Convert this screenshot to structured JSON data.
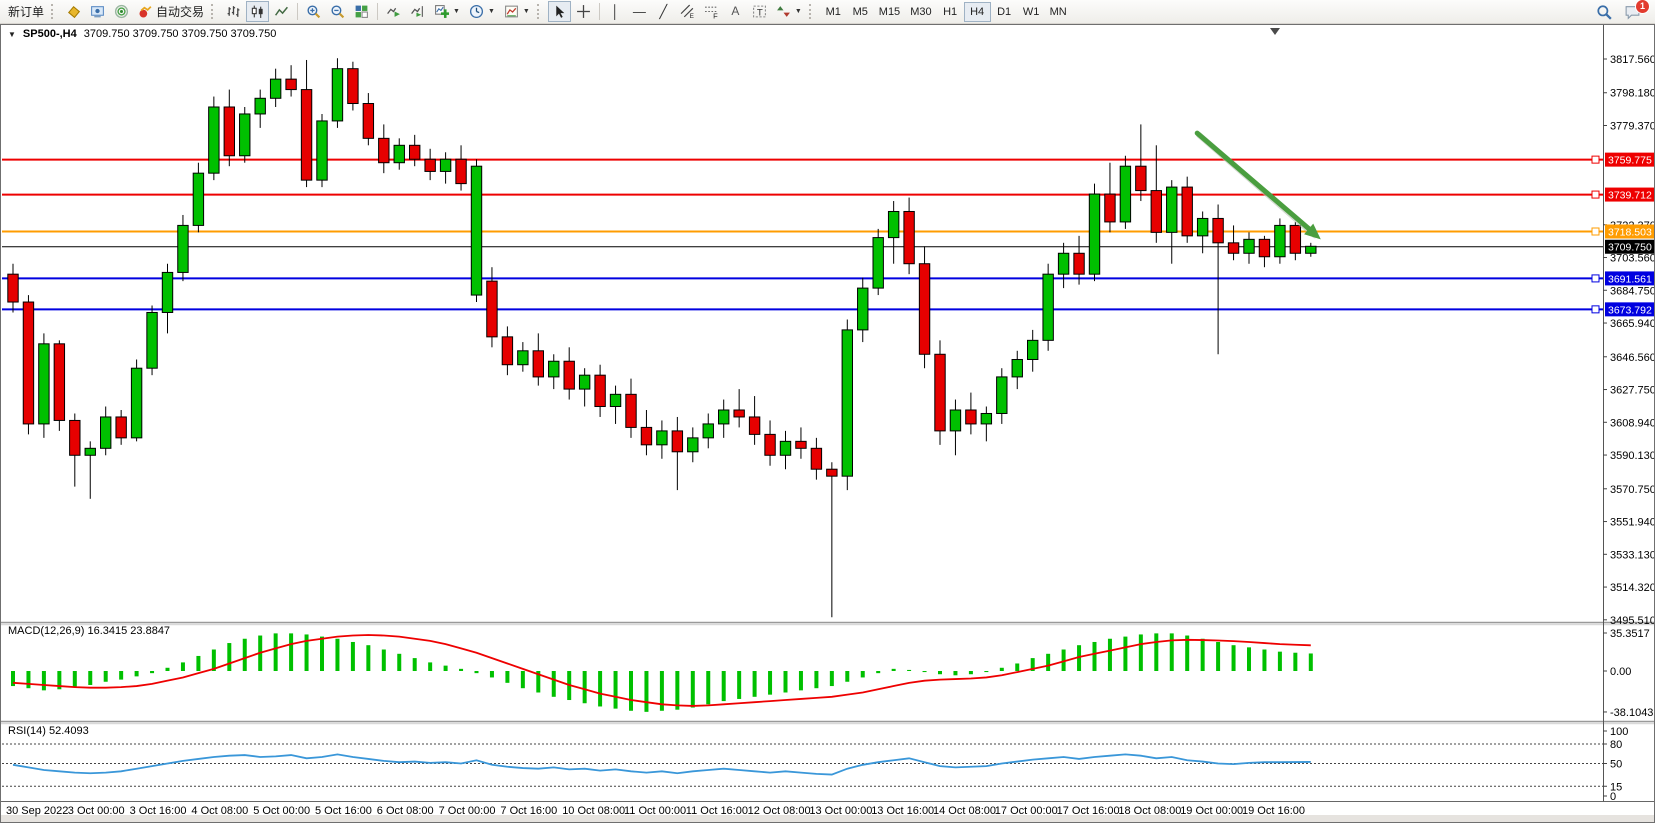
{
  "toolbar": {
    "new_order_label": "新订单",
    "auto_trading_label": "自动交易",
    "timeframes": [
      "M1",
      "M5",
      "M15",
      "M30",
      "H1",
      "H4",
      "D1",
      "W1",
      "MN"
    ],
    "active_timeframe": "H4",
    "notification_badge": "1"
  },
  "chart": {
    "symbol_period": "SP500-,H4",
    "quote_line": "3709.750 3709.750 3709.750 3709.750"
  },
  "macd": {
    "label": "MACD(12,26,9) 16.3415 23.8847",
    "axis_max": "35.3517",
    "axis_zero": "0.00",
    "axis_min": "-38.1043"
  },
  "rsi": {
    "label": "RSI(14) 52.4093",
    "axis_labels": [
      "100",
      "80",
      "50",
      "15",
      "0"
    ]
  },
  "colors": {
    "bull": "#00c000",
    "bear": "#e60000",
    "wick": "#000000",
    "macd_hist": "#00c000",
    "macd_signal": "#ee0000",
    "rsi_line": "#3a97d9",
    "resistance": "#ee0000",
    "pivot": "#ff9c00",
    "support": "#0000e0",
    "current_price": "#000000",
    "arrow": "#4a9e3f"
  },
  "chart_data": {
    "type": "candlestick",
    "symbol": "SP500-",
    "timeframe": "H4",
    "title": "SP500-,H4 3709.750 3709.750 3709.750 3709.750",
    "price_axis_ticks": [
      "3817.560",
      "3798.180",
      "3779.370",
      "3722.370",
      "3703.560",
      "3684.750",
      "3665.940",
      "3646.560",
      "3627.750",
      "3608.940",
      "3590.130",
      "3570.750",
      "3551.940",
      "3533.130",
      "3514.320",
      "3495.510"
    ],
    "x_labels": [
      "30 Sep 2022",
      "3 Oct 00:00",
      "3 Oct 16:00",
      "4 Oct 08:00",
      "5 Oct 00:00",
      "5 Oct 16:00",
      "6 Oct 08:00",
      "7 Oct 00:00",
      "7 Oct 16:00",
      "10 Oct 08:00",
      "11 Oct 00:00",
      "11 Oct 16:00",
      "12 Oct 08:00",
      "13 Oct 00:00",
      "13 Oct 16:00",
      "14 Oct 08:00",
      "17 Oct 00:00",
      "17 Oct 16:00",
      "18 Oct 08:00",
      "19 Oct 00:00",
      "19 Oct 16:00"
    ],
    "bars_per_x_label": 4,
    "ylim": [
      3495.51,
      3836.0
    ],
    "candles": [
      [
        3694,
        3700,
        3672,
        3678
      ],
      [
        3678,
        3682,
        3602,
        3608
      ],
      [
        3608,
        3660,
        3600,
        3654
      ],
      [
        3654,
        3656,
        3604,
        3610
      ],
      [
        3610,
        3614,
        3572,
        3590
      ],
      [
        3590,
        3598,
        3565,
        3594
      ],
      [
        3594,
        3618,
        3590,
        3612
      ],
      [
        3612,
        3616,
        3596,
        3600
      ],
      [
        3600,
        3645,
        3598,
        3640
      ],
      [
        3640,
        3676,
        3636,
        3672
      ],
      [
        3672,
        3700,
        3660,
        3695
      ],
      [
        3695,
        3728,
        3690,
        3722
      ],
      [
        3722,
        3758,
        3718,
        3752
      ],
      [
        3752,
        3796,
        3748,
        3790
      ],
      [
        3790,
        3800,
        3756,
        3762
      ],
      [
        3762,
        3790,
        3758,
        3786
      ],
      [
        3786,
        3800,
        3778,
        3795
      ],
      [
        3795,
        3812,
        3790,
        3806
      ],
      [
        3806,
        3814,
        3796,
        3800
      ],
      [
        3800,
        3817,
        3744,
        3748
      ],
      [
        3748,
        3786,
        3744,
        3782
      ],
      [
        3782,
        3818,
        3778,
        3812
      ],
      [
        3812,
        3816,
        3788,
        3792
      ],
      [
        3792,
        3798,
        3768,
        3772
      ],
      [
        3772,
        3780,
        3752,
        3758
      ],
      [
        3758,
        3772,
        3754,
        3768
      ],
      [
        3768,
        3774,
        3756,
        3760
      ],
      [
        3760,
        3766,
        3748,
        3753
      ],
      [
        3753,
        3764,
        3746,
        3760
      ],
      [
        3760,
        3768,
        3742,
        3746
      ],
      [
        3682,
        3760,
        3678,
        3756
      ],
      [
        3690,
        3698,
        3652,
        3658
      ],
      [
        3658,
        3664,
        3636,
        3642
      ],
      [
        3642,
        3655,
        3638,
        3650
      ],
      [
        3650,
        3660,
        3630,
        3635
      ],
      [
        3635,
        3648,
        3628,
        3644
      ],
      [
        3644,
        3652,
        3622,
        3628
      ],
      [
        3628,
        3640,
        3618,
        3636
      ],
      [
        3636,
        3642,
        3612,
        3618
      ],
      [
        3618,
        3630,
        3608,
        3625
      ],
      [
        3625,
        3634,
        3600,
        3606
      ],
      [
        3606,
        3616,
        3590,
        3596
      ],
      [
        3596,
        3610,
        3588,
        3604
      ],
      [
        3604,
        3612,
        3570,
        3592
      ],
      [
        3592,
        3606,
        3586,
        3600
      ],
      [
        3600,
        3614,
        3594,
        3608
      ],
      [
        3608,
        3622,
        3600,
        3616
      ],
      [
        3616,
        3628,
        3606,
        3612
      ],
      [
        3612,
        3624,
        3596,
        3602
      ],
      [
        3602,
        3610,
        3584,
        3590
      ],
      [
        3590,
        3604,
        3582,
        3598
      ],
      [
        3598,
        3606,
        3588,
        3594
      ],
      [
        3594,
        3600,
        3576,
        3582
      ],
      [
        3582,
        3586,
        3497,
        3578
      ],
      [
        3578,
        3668,
        3570,
        3662
      ],
      [
        3662,
        3692,
        3655,
        3686
      ],
      [
        3686,
        3720,
        3682,
        3715
      ],
      [
        3715,
        3736,
        3700,
        3730
      ],
      [
        3730,
        3738,
        3694,
        3700
      ],
      [
        3700,
        3710,
        3640,
        3648
      ],
      [
        3648,
        3656,
        3596,
        3604
      ],
      [
        3604,
        3622,
        3590,
        3616
      ],
      [
        3616,
        3626,
        3602,
        3608
      ],
      [
        3608,
        3618,
        3598,
        3614
      ],
      [
        3614,
        3640,
        3608,
        3635
      ],
      [
        3635,
        3650,
        3628,
        3645
      ],
      [
        3645,
        3662,
        3638,
        3656
      ],
      [
        3656,
        3700,
        3650,
        3694
      ],
      [
        3694,
        3712,
        3686,
        3706
      ],
      [
        3706,
        3716,
        3688,
        3694
      ],
      [
        3694,
        3746,
        3690,
        3740
      ],
      [
        3740,
        3758,
        3718,
        3724
      ],
      [
        3724,
        3762,
        3720,
        3756
      ],
      [
        3756,
        3780,
        3736,
        3742
      ],
      [
        3742,
        3768,
        3712,
        3718
      ],
      [
        3718,
        3748,
        3700,
        3744
      ],
      [
        3744,
        3750,
        3712,
        3716
      ],
      [
        3716,
        3730,
        3706,
        3726
      ],
      [
        3726,
        3734,
        3648,
        3712
      ],
      [
        3712,
        3722,
        3702,
        3706
      ],
      [
        3706,
        3718,
        3700,
        3714
      ],
      [
        3714,
        3716,
        3698,
        3704
      ],
      [
        3704,
        3726,
        3700,
        3722
      ],
      [
        3722,
        3724,
        3702,
        3706
      ],
      [
        3706,
        3712,
        3704,
        3710
      ]
    ],
    "horizontal_lines": [
      {
        "price": 3759.775,
        "label": "3759.775",
        "color": "#ee0000",
        "type": "resistance"
      },
      {
        "price": 3739.712,
        "label": "3739.712",
        "color": "#ee0000",
        "type": "resistance"
      },
      {
        "price": 3718.503,
        "label": "3718.503",
        "color": "#ff9c00",
        "type": "pivot"
      },
      {
        "price": 3691.561,
        "label": "3691.561",
        "color": "#0000e0",
        "type": "support"
      },
      {
        "price": 3673.792,
        "label": "3673.792",
        "color": "#0000e0",
        "type": "support"
      }
    ],
    "current_price": {
      "price": 3709.75,
      "label": "3709.750"
    },
    "indicators": {
      "macd": {
        "params": "12,26,9",
        "value": 16.3415,
        "signal_value": 23.8847,
        "range": [
          -38.1043,
          35.3517
        ],
        "histogram": [
          -14,
          -16,
          -18,
          -17,
          -15,
          -13,
          -10,
          -8,
          -5,
          -2,
          3,
          8,
          14,
          20,
          26,
          30,
          33,
          35,
          35,
          34,
          32,
          30,
          27,
          24,
          20,
          16,
          12,
          8,
          5,
          2,
          -2,
          -6,
          -11,
          -16,
          -20,
          -24,
          -27,
          -30,
          -33,
          -35,
          -37,
          -38,
          -37,
          -36,
          -34,
          -31,
          -28,
          -26,
          -24,
          -22,
          -20,
          -18,
          -16,
          -14,
          -10,
          -6,
          -2,
          2,
          1,
          -1,
          -3,
          -4,
          -3,
          -1,
          3,
          7,
          12,
          16,
          20,
          24,
          27,
          30,
          32,
          34,
          35,
          35,
          33,
          30,
          27,
          24,
          22,
          20,
          18,
          17,
          16.3
        ],
        "signal": [
          -11,
          -12,
          -13,
          -14,
          -15,
          -15.5,
          -15.5,
          -15,
          -14,
          -12,
          -9,
          -6,
          -2,
          2,
          7,
          12,
          17,
          21,
          25,
          28,
          30,
          32,
          33,
          33.5,
          33,
          32,
          30,
          28,
          25,
          21,
          17,
          12,
          7,
          2,
          -3,
          -8,
          -13,
          -17,
          -21,
          -24,
          -27,
          -29,
          -31,
          -32,
          -32.5,
          -32,
          -31,
          -30,
          -29,
          -28,
          -27,
          -26,
          -25,
          -24,
          -22,
          -20,
          -17,
          -14,
          -11,
          -9,
          -8,
          -7.5,
          -7,
          -6,
          -4,
          -1,
          2,
          5,
          9,
          13,
          16,
          19,
          22,
          25,
          27,
          28.5,
          29,
          28.8,
          28.4,
          27.8,
          27,
          26,
          25,
          24.4,
          23.9
        ]
      },
      "rsi": {
        "params": "14",
        "value": 52.4093,
        "range": [
          0,
          100
        ],
        "levels": [
          80,
          50,
          15
        ],
        "values": [
          48,
          44,
          40,
          38,
          36,
          35,
          36,
          38,
          42,
          46,
          50,
          54,
          57,
          60,
          62,
          63,
          60,
          61,
          63,
          58,
          60,
          64,
          60,
          57,
          54,
          52,
          53,
          51,
          52,
          50,
          55,
          48,
          45,
          43,
          42,
          44,
          41,
          42,
          39,
          41,
          38,
          36,
          38,
          35,
          38,
          40,
          42,
          40,
          38,
          36,
          38,
          36,
          34,
          33,
          42,
          48,
          52,
          55,
          58,
          52,
          46,
          44,
          45,
          46,
          50,
          53,
          56,
          58,
          60,
          57,
          60,
          62,
          64,
          62,
          58,
          60,
          55,
          53,
          50,
          49,
          51,
          52,
          52,
          52.2,
          52.4
        ]
      }
    },
    "annotations": [
      {
        "type": "arrow",
        "from_bar": 76,
        "from_price": 3775,
        "to_bar": 84,
        "to_price": 3714,
        "color": "#4a9e3f"
      }
    ]
  }
}
